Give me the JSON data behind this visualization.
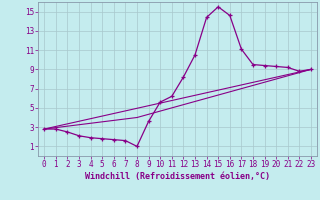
{
  "xlabel": "Windchill (Refroidissement éolien,°C)",
  "bg_color": "#c4ecee",
  "line_color": "#880088",
  "grid_color": "#a8c8cc",
  "xlim": [
    -0.5,
    23.5
  ],
  "ylim": [
    0,
    16
  ],
  "xticks": [
    0,
    1,
    2,
    3,
    4,
    5,
    6,
    7,
    8,
    9,
    10,
    11,
    12,
    13,
    14,
    15,
    16,
    17,
    18,
    19,
    20,
    21,
    22,
    23
  ],
  "yticks": [
    1,
    3,
    5,
    7,
    9,
    11,
    13,
    15
  ],
  "main_x": [
    0,
    1,
    2,
    3,
    4,
    5,
    6,
    7,
    8,
    9,
    10,
    11,
    12,
    13,
    14,
    15,
    16,
    17,
    18,
    19,
    20,
    21,
    22,
    23
  ],
  "main_y": [
    2.8,
    2.8,
    2.5,
    2.1,
    1.9,
    1.8,
    1.7,
    1.6,
    1.0,
    3.6,
    5.6,
    6.2,
    8.2,
    10.5,
    14.4,
    15.5,
    14.6,
    11.1,
    9.5,
    9.4,
    9.3,
    9.2,
    8.8,
    9.0
  ],
  "line2_x": [
    0,
    23
  ],
  "line2_y": [
    2.8,
    9.0
  ],
  "line3_x": [
    0,
    8,
    23
  ],
  "line3_y": [
    2.8,
    4.0,
    9.0
  ],
  "font_size_tick": 5.5,
  "font_size_xlabel": 6.0
}
